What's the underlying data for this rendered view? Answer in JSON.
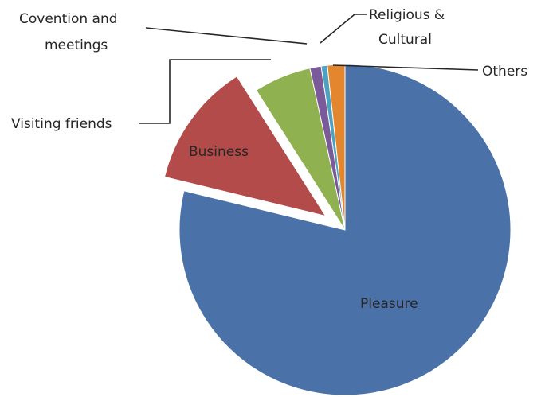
{
  "chart_data": {
    "type": "pie",
    "title": "",
    "labels": [
      "Pleasure",
      "Business",
      "Visiting friends",
      "Covention and meetings",
      "Religious & Cultural",
      "Others"
    ],
    "values": [
      78.8,
      12.2,
      5.6,
      1.1,
      0.6,
      1.7
    ],
    "colors": [
      "#4a72a8",
      "#b24b49",
      "#8fb14f",
      "#7b5a9a",
      "#4fa2bf",
      "#e3862e"
    ],
    "exploded": [
      "Business"
    ],
    "start_angle_deg": 0,
    "direction": "clockwise",
    "legend": "none"
  },
  "slice_labels": {
    "pleasure": "Pleasure",
    "business": "Business",
    "visiting_friends": "Visiting friends",
    "convention_line1": "Covention and",
    "convention_line2": "meetings",
    "religious_line1": "Religious &",
    "religious_line2": "Cultural",
    "others": "Others"
  }
}
